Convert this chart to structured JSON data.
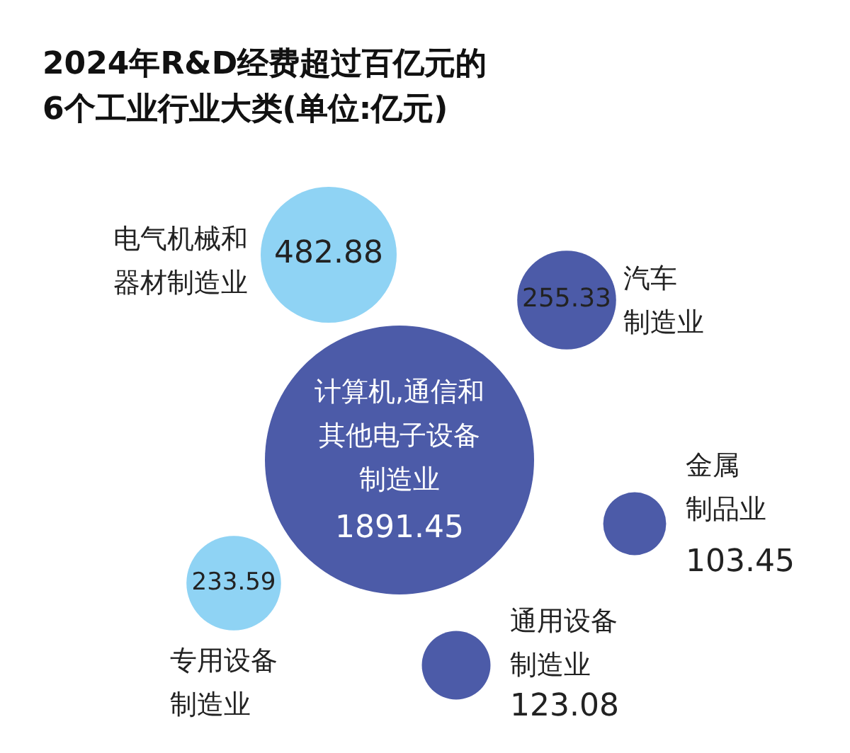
{
  "chart_data": {
    "type": "other",
    "title": "2024年R&D经费超过百亿元的6个工业行业大类(单位:亿元)",
    "categories": [
      "计算机,通信和其他电子设备制造业",
      "电气机械和器材制造业",
      "汽车制造业",
      "金属制品业",
      "通用设备制造业",
      "专用设备制造业"
    ],
    "values": [
      1891.45,
      482.88,
      255.33,
      103.45,
      123.08,
      233.59
    ],
    "colors": [
      "#4c5ba8",
      "#8fd3f4",
      "#4c5ba8",
      "#4c5ba8",
      "#4c5ba8",
      "#8fd3f4"
    ],
    "data_labels": true
  }
}
